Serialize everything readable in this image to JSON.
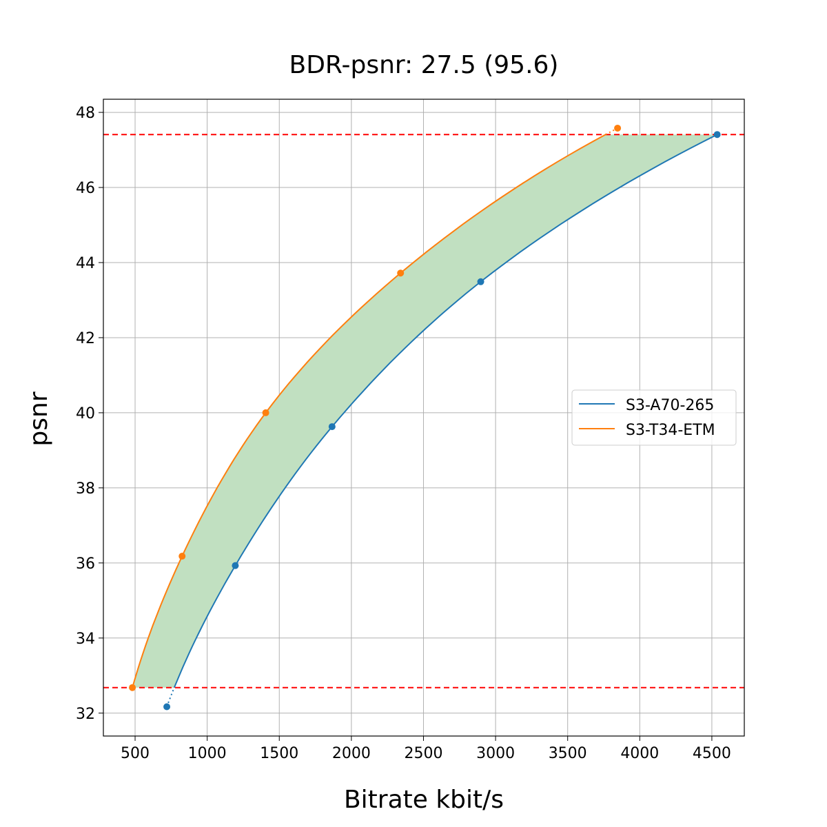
{
  "chart_data": {
    "type": "line",
    "title": "BDR-psnr: 27.5 (95.6)",
    "xlabel": "Bitrate kbit/s",
    "ylabel": "psnr",
    "xlim": [
      280,
      4725
    ],
    "ylim": [
      31.39,
      48.35
    ],
    "xticks": [
      500,
      1000,
      1500,
      2000,
      2500,
      3000,
      3500,
      4000,
      4500
    ],
    "yticks": [
      32,
      34,
      36,
      38,
      40,
      42,
      44,
      46,
      48
    ],
    "grid": true,
    "legend_placement": "center-right",
    "hlines": [
      47.41,
      32.68
    ],
    "hline_color": "#ff0000",
    "fill_color": "#c1e0c1",
    "series": [
      {
        "name": "S3-A70-265",
        "color": "#1f77b4",
        "x": [
          720,
          1195,
          1866,
          2897,
          4537
        ],
        "y": [
          32.17,
          35.93,
          39.63,
          43.49,
          47.41
        ]
      },
      {
        "name": "S3-T34-ETM",
        "color": "#ff7f0e",
        "x": [
          481,
          826,
          1406,
          2341,
          3846
        ],
        "y": [
          32.68,
          36.18,
          40.0,
          43.72,
          47.58
        ]
      }
    ]
  }
}
